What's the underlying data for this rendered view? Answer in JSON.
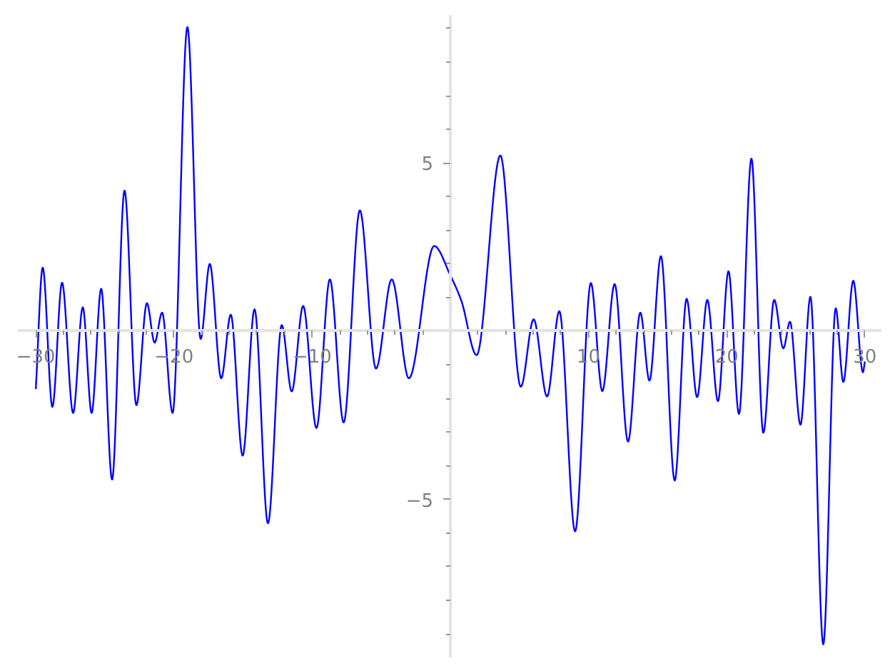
{
  "chart_data": {
    "type": "line",
    "color": "#0000ff",
    "line_style": "solid",
    "marker": "none",
    "grid": false,
    "x": [
      -30,
      -29.5,
      -28.8,
      -28.1,
      -27.3,
      -26.6,
      -25.96,
      -25.27,
      -24.48,
      -23.58,
      -22.72,
      -21.96,
      -21.4,
      -20.86,
      -20.1,
      -19.03,
      -18.07,
      -17.41,
      -16.58,
      -15.89,
      -15.03,
      -14.17,
      -13.2,
      -12.2,
      -11.48,
      -10.65,
      -9.69,
      -8.72,
      -7.72,
      -6.55,
      -5.38,
      -4.24,
      -3.0,
      -1.17,
      0.0,
      0.8,
      1.9,
      3.62,
      5.1,
      6.03,
      7.0,
      7.89,
      9.03,
      10.17,
      11.0,
      11.89,
      12.86,
      13.75,
      14.41,
      15.24,
      16.24,
      17.1,
      17.86,
      18.6,
      19.37,
      20.13,
      20.89,
      21.79,
      22.65,
      23.44,
      24.1,
      24.58,
      25.34,
      26.06,
      26.99,
      27.89,
      28.44,
      29.16,
      29.86,
      30.0
    ],
    "values": [
      -1.72,
      1.89,
      -2.25,
      1.44,
      -2.43,
      0.71,
      -2.43,
      1.26,
      -4.41,
      4.18,
      -2.2,
      0.83,
      -0.34,
      0.55,
      -2.43,
      9.04,
      -0.23,
      2.0,
      -1.4,
      0.49,
      -3.7,
      0.65,
      -5.71,
      0.18,
      -1.79,
      0.75,
      -2.88,
      1.54,
      -2.71,
      3.59,
      -1.11,
      1.54,
      -1.4,
      2.53,
      1.66,
      0.9,
      -0.71,
      5.22,
      -1.65,
      0.35,
      -1.94,
      0.59,
      -5.95,
      1.43,
      -1.78,
      1.4,
      -3.28,
      0.55,
      -1.47,
      2.23,
      -4.44,
      0.96,
      -1.96,
      0.93,
      -2.08,
      1.78,
      -2.46,
      5.13,
      -3.02,
      0.93,
      -0.51,
      0.28,
      -2.78,
      1.02,
      -9.31,
      0.68,
      -1.51,
      1.5,
      -1.22,
      -0.9
    ],
    "xlim": [
      -31.3,
      31.2
    ],
    "ylim": [
      -9.7,
      9.4
    ],
    "xticks": [
      {
        "value": -30,
        "label": "−30"
      },
      {
        "value": -28,
        "label": null
      },
      {
        "value": -26,
        "label": null
      },
      {
        "value": -24,
        "label": null
      },
      {
        "value": -22,
        "label": null
      },
      {
        "value": -20,
        "label": "−20"
      },
      {
        "value": -18,
        "label": null
      },
      {
        "value": -16,
        "label": null
      },
      {
        "value": -14,
        "label": null
      },
      {
        "value": -12,
        "label": null
      },
      {
        "value": -10,
        "label": "−10"
      },
      {
        "value": -8,
        "label": null
      },
      {
        "value": -6,
        "label": null
      },
      {
        "value": -4,
        "label": null
      },
      {
        "value": -2,
        "label": null
      },
      {
        "value": 2,
        "label": null
      },
      {
        "value": 4,
        "label": null
      },
      {
        "value": 6,
        "label": null
      },
      {
        "value": 8,
        "label": null
      },
      10,
      {
        "value": 12,
        "label": null
      },
      {
        "value": 14,
        "label": null
      },
      {
        "value": 16,
        "label": null
      },
      {
        "value": 18,
        "label": null
      },
      20,
      {
        "value": 22,
        "label": null
      },
      {
        "value": 24,
        "label": null
      },
      {
        "value": 26,
        "label": null
      },
      {
        "value": 28,
        "label": null
      },
      30
    ],
    "yticks": [
      {
        "value": -9,
        "label": null
      },
      {
        "value": -8,
        "label": null
      },
      {
        "value": -7,
        "label": null
      },
      {
        "value": -6,
        "label": null
      },
      {
        "value": -5,
        "label": "−5"
      },
      {
        "value": -4,
        "label": null
      },
      {
        "value": -3,
        "label": null
      },
      {
        "value": -2,
        "label": null
      },
      {
        "value": -1,
        "label": null
      },
      {
        "value": 1,
        "label": null
      },
      {
        "value": 2,
        "label": null
      },
      {
        "value": 3,
        "label": null
      },
      {
        "value": 4,
        "label": null
      },
      5,
      {
        "value": 6,
        "label": null
      },
      {
        "value": 7,
        "label": null
      },
      {
        "value": 8,
        "label": null
      },
      {
        "value": 9,
        "label": null
      }
    ]
  }
}
